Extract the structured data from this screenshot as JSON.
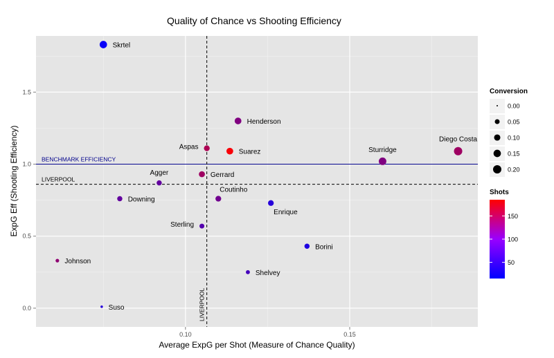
{
  "chart_data": {
    "type": "scatter",
    "title": "Quality of Chance vs Shooting Efficiency",
    "xlabel": "Average ExpG per Shot (Measure of Chance Quality)",
    "ylabel": "ExpG Eff (Shooting Efficiency)",
    "xlim": [
      0.0545,
      0.189
    ],
    "ylim": [
      -0.13,
      1.89
    ],
    "x_ticks": [
      0.1,
      0.15
    ],
    "x_tick_labels": [
      "0.10",
      "0.15"
    ],
    "y_ticks": [
      0.0,
      0.5,
      1.0,
      1.5
    ],
    "y_tick_labels": [
      "0.0",
      "0.5",
      "1.0",
      "1.5"
    ],
    "grid": true,
    "reference_lines": {
      "benchmark": {
        "y": 1.0,
        "label": "BENCHMARK EFFICIENCY",
        "color": "#00008b"
      },
      "liverpool_h": {
        "y": 0.86,
        "label": "LIVERPOOL"
      },
      "liverpool_v": {
        "x": 0.1065,
        "label": "LIVERPOOL"
      }
    },
    "points": [
      {
        "name": "Skrtel",
        "x": 0.075,
        "y": 1.83,
        "shots": 20,
        "conversion": 0.15
      },
      {
        "name": "Henderson",
        "x": 0.116,
        "y": 1.3,
        "shots": 100,
        "conversion": 0.12
      },
      {
        "name": "Aspas",
        "x": 0.1065,
        "y": 1.11,
        "shots": 130,
        "conversion": 0.08
      },
      {
        "name": "Suarez",
        "x": 0.1135,
        "y": 1.09,
        "shots": 180,
        "conversion": 0.12
      },
      {
        "name": "Sturridge",
        "x": 0.16,
        "y": 1.02,
        "shots": 100,
        "conversion": 0.16
      },
      {
        "name": "Diego Costa",
        "x": 0.183,
        "y": 1.09,
        "shots": 120,
        "conversion": 0.2
      },
      {
        "name": "Gerrard",
        "x": 0.105,
        "y": 0.93,
        "shots": 120,
        "conversion": 0.09
      },
      {
        "name": "Agger",
        "x": 0.092,
        "y": 0.87,
        "shots": 80,
        "conversion": 0.06
      },
      {
        "name": "Downing",
        "x": 0.08,
        "y": 0.76,
        "shots": 80,
        "conversion": 0.06
      },
      {
        "name": "Coutinho",
        "x": 0.11,
        "y": 0.76,
        "shots": 90,
        "conversion": 0.08
      },
      {
        "name": "Enrique",
        "x": 0.126,
        "y": 0.73,
        "shots": 40,
        "conversion": 0.08
      },
      {
        "name": "Sterling",
        "x": 0.105,
        "y": 0.57,
        "shots": 70,
        "conversion": 0.05
      },
      {
        "name": "Borini",
        "x": 0.137,
        "y": 0.43,
        "shots": 35,
        "conversion": 0.06
      },
      {
        "name": "Johnson",
        "x": 0.061,
        "y": 0.33,
        "shots": 110,
        "conversion": 0.02
      },
      {
        "name": "Shelvey",
        "x": 0.119,
        "y": 0.25,
        "shots": 60,
        "conversion": 0.03
      },
      {
        "name": "Suso",
        "x": 0.0745,
        "y": 0.01,
        "shots": 40,
        "conversion": 0.005
      }
    ],
    "legend_size": {
      "title": "Conversion",
      "values": [
        0.0,
        0.05,
        0.1,
        0.15,
        0.2
      ],
      "labels": [
        "0.00",
        "0.05",
        "0.10",
        "0.15",
        "0.20"
      ]
    },
    "legend_color": {
      "title": "Shots",
      "min": 15,
      "max": 185,
      "ticks": [
        50,
        100,
        150
      ],
      "tick_labels": [
        "50",
        "100",
        "150"
      ],
      "low_color": "#0000ff",
      "high_color": "#ff0000"
    },
    "panel_color": "#e5e5e5",
    "grid_color": "#ffffff"
  }
}
